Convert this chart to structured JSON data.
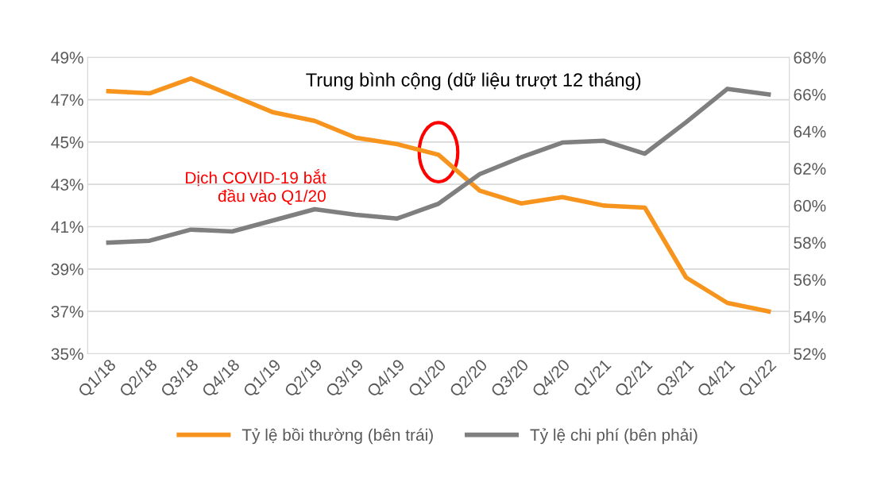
{
  "chart_data": {
    "type": "line",
    "title": "Trung bình cộng (dữ liệu trượt 12 tháng)",
    "categories": [
      "Q1/18",
      "Q2/18",
      "Q3/18",
      "Q4/18",
      "Q1/19",
      "Q2/19",
      "Q3/19",
      "Q4/19",
      "Q1/20",
      "Q2/20",
      "Q3/20",
      "Q4/20",
      "Q1/21",
      "Q2/21",
      "Q3/21",
      "Q4/21",
      "Q1/22"
    ],
    "series": [
      {
        "name": "Tỷ lệ bồi thường (bên trái)",
        "color": "#f7941d",
        "values": [
          47.4,
          47.3,
          48.0,
          47.2,
          46.4,
          46.0,
          45.2,
          44.9,
          44.4,
          42.7,
          42.1,
          42.4,
          42.0,
          41.9,
          38.6,
          37.4,
          37.0
        ]
      },
      {
        "name": "Tỷ lệ chi phí (bên phải)",
        "color": "#7f7f7f",
        "axis": "y2",
        "values": [
          58.0,
          58.1,
          58.7,
          58.6,
          59.2,
          59.8,
          59.5,
          59.3,
          60.1,
          61.7,
          62.6,
          63.4,
          63.5,
          62.8,
          64.5,
          66.3,
          66.0
        ]
      }
    ],
    "ylim": [
      35,
      49
    ],
    "yticks": [
      {
        "value": 35,
        "label": "35%"
      },
      {
        "value": 37,
        "label": "37%"
      },
      {
        "value": 39,
        "label": "39%"
      },
      {
        "value": 41,
        "label": "41%"
      },
      {
        "value": 43,
        "label": "43%"
      },
      {
        "value": 45,
        "label": "45%"
      },
      {
        "value": 47,
        "label": "47%"
      },
      {
        "value": 49,
        "label": "49%"
      }
    ],
    "y2lim": [
      52,
      68
    ],
    "y2ticks": [
      {
        "value": 52,
        "label": "52%"
      },
      {
        "value": 54,
        "label": "54%"
      },
      {
        "value": 56,
        "label": "56%"
      },
      {
        "value": 58,
        "label": "58%"
      },
      {
        "value": 60,
        "label": "60%"
      },
      {
        "value": 62,
        "label": "62%"
      },
      {
        "value": 64,
        "label": "64%"
      },
      {
        "value": 66,
        "label": "66%"
      },
      {
        "value": 68,
        "label": "68%"
      }
    ],
    "annotations": [
      "Dịch COVID-19 bắt\nđầu vào Q1/20"
    ],
    "grid": "y",
    "legend": "bottom",
    "marker": "none",
    "line_style": "solid"
  }
}
